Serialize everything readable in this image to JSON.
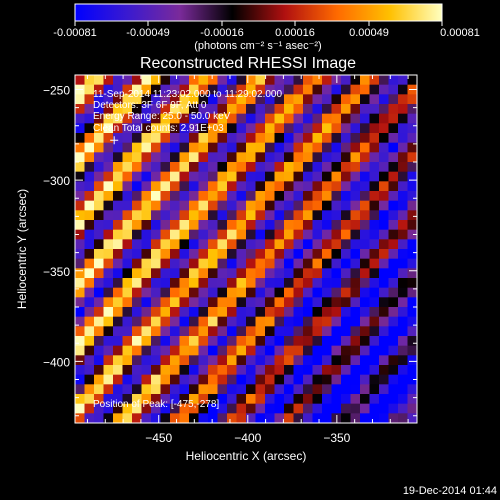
{
  "colorbar": {
    "tick_labels": [
      "-0.00081",
      "-0.00049",
      "-0.00016",
      "0.00016",
      "0.00049",
      "0.00081"
    ],
    "unit_label": "(photons cm⁻² s⁻¹ asec⁻²)",
    "range": [
      -0.00081,
      0.00081
    ],
    "colors": [
      "#0000ff",
      "#3a1ad0",
      "#7a2a9a",
      "#000000",
      "#b01010",
      "#ff6a00",
      "#ffc000",
      "#ffffc0"
    ]
  },
  "info_lines": [
    "11-Sep-2014 11:23:02.000 to 11:29:02.000",
    "Detectors: 3F 6F 9F, Att 0",
    "Energy Range: 25.0 - 50.0 keV",
    "Clean    Total counts: 2.91E+03",
    "Position of Peak: [-475,-278]"
  ],
  "footer": {
    "timestamp": "19-Dec-2014 01:44"
  },
  "chart_data": {
    "type": "heatmap",
    "title": "Reconstructed RHESSI Image",
    "xlabel": "Heliocentric X (arcsec)",
    "ylabel": "Heliocentric Y (arcsec)",
    "xlim": [
      -497,
      -305
    ],
    "ylim": [
      -434,
      -242
    ],
    "xticks": [
      -450,
      -400,
      -350
    ],
    "yticks": [
      -250,
      -300,
      -350,
      -400
    ],
    "xtick_labels": [
      "−450",
      "−400",
      "−350"
    ],
    "ytick_labels": [
      "−250",
      "−300",
      "−350",
      "−400"
    ],
    "pattern": "diagonal stripes from upper-left to lower-right, brighter on the left side, blue area toward lower-right",
    "peak": [
      -475,
      -278
    ]
  }
}
